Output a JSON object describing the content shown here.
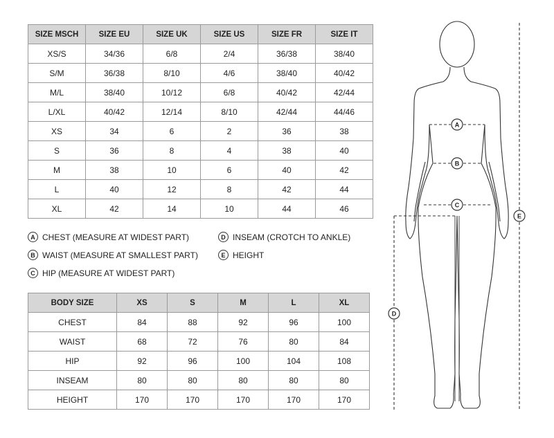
{
  "size_table": {
    "headers": [
      "SIZE MSCH",
      "SIZE EU",
      "SIZE UK",
      "SIZE US",
      "SIZE FR",
      "SIZE IT"
    ],
    "rows": [
      [
        "XS/S",
        "34/36",
        "6/8",
        "2/4",
        "36/38",
        "38/40"
      ],
      [
        "S/M",
        "36/38",
        "8/10",
        "4/6",
        "38/40",
        "40/42"
      ],
      [
        "M/L",
        "38/40",
        "10/12",
        "6/8",
        "40/42",
        "42/44"
      ],
      [
        "L/XL",
        "40/42",
        "12/14",
        "8/10",
        "42/44",
        "44/46"
      ],
      [
        "XS",
        "34",
        "6",
        "2",
        "36",
        "38"
      ],
      [
        "S",
        "36",
        "8",
        "4",
        "38",
        "40"
      ],
      [
        "M",
        "38",
        "10",
        "6",
        "40",
        "42"
      ],
      [
        "L",
        "40",
        "12",
        "8",
        "42",
        "44"
      ],
      [
        "XL",
        "42",
        "14",
        "10",
        "44",
        "46"
      ]
    ]
  },
  "legend": [
    {
      "key": "A",
      "label": "CHEST (MEASURE AT WIDEST PART)"
    },
    {
      "key": "B",
      "label": "WAIST (MEASURE AT SMALLEST PART)"
    },
    {
      "key": "C",
      "label": "HIP (MEASURE AT WIDEST PART)"
    },
    {
      "key": "D",
      "label": "INSEAM (CROTCH TO ANKLE)"
    },
    {
      "key": "E",
      "label": "HEIGHT"
    }
  ],
  "body_table": {
    "headers": [
      "BODY SIZE",
      "XS",
      "S",
      "M",
      "L",
      "XL"
    ],
    "rows": [
      [
        "CHEST",
        "84",
        "88",
        "92",
        "96",
        "100"
      ],
      [
        "WAIST",
        "68",
        "72",
        "76",
        "80",
        "84"
      ],
      [
        "HIP",
        "92",
        "96",
        "100",
        "104",
        "108"
      ],
      [
        "INSEAM",
        "80",
        "80",
        "80",
        "80",
        "80"
      ],
      [
        "HEIGHT",
        "170",
        "170",
        "170",
        "170",
        "170"
      ]
    ]
  },
  "figure": {
    "markers": [
      "A",
      "B",
      "C",
      "D",
      "E"
    ]
  }
}
